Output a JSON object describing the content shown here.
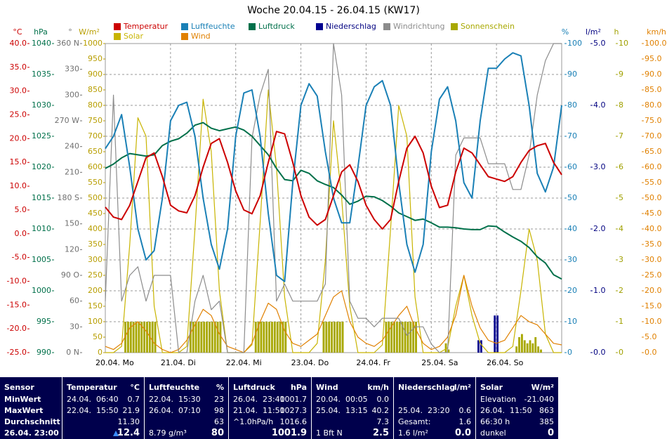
{
  "chart_data": {
    "type": "line",
    "title": "Woche 20.04.15 - 26.04.15 (KW17)",
    "xlim": [
      0,
      168
    ],
    "xticks": [
      {
        "value": 0,
        "label": "20.04.  Mo"
      },
      {
        "value": 24,
        "label": "21.04.  Di"
      },
      {
        "value": 48,
        "label": "22.04.  Mi"
      },
      {
        "value": 72,
        "label": "23.04.  Do"
      },
      {
        "value": 96,
        "label": "24.04.  Fr"
      },
      {
        "value": 120,
        "label": "25.04.  Sa"
      },
      {
        "value": 144,
        "label": "26.04.  So"
      }
    ],
    "x": [
      0,
      3,
      6,
      9,
      12,
      15,
      18,
      21,
      24,
      27,
      30,
      33,
      36,
      39,
      42,
      45,
      48,
      51,
      54,
      57,
      60,
      63,
      66,
      69,
      72,
      75,
      78,
      81,
      84,
      87,
      90,
      93,
      96,
      99,
      102,
      105,
      108,
      111,
      114,
      117,
      120,
      123,
      126,
      129,
      132,
      135,
      138,
      141,
      144,
      147,
      150,
      153,
      156,
      159,
      162,
      165,
      168
    ],
    "axes": [
      {
        "label": "°C",
        "side": "left",
        "color": "#cc0000",
        "ylim": [
          -25,
          40
        ],
        "yticks": [
          {
            "value": -25,
            "label": "-25.0"
          },
          {
            "value": -20,
            "label": "-20.0"
          },
          {
            "value": -15,
            "label": "-15.0"
          },
          {
            "value": -10,
            "label": "-10.0"
          },
          {
            "value": -5,
            "label": "-5.0"
          },
          {
            "value": 0,
            "label": "0.0"
          },
          {
            "value": 5,
            "label": "5.0"
          },
          {
            "value": 10,
            "label": "10.0"
          },
          {
            "value": 15,
            "label": "15.0"
          },
          {
            "value": 20,
            "label": "20.0"
          },
          {
            "value": 25,
            "label": "25.0"
          },
          {
            "value": 30,
            "label": "30.0"
          },
          {
            "value": 35,
            "label": "35.0"
          },
          {
            "value": 40,
            "label": "40.0"
          }
        ]
      },
      {
        "label": "hPa",
        "side": "left",
        "color": "#00704a",
        "ylim": [
          990,
          1040
        ],
        "yticks": [
          990,
          995,
          1000,
          1005,
          1010,
          1015,
          1020,
          1025,
          1030,
          1035,
          1040
        ]
      },
      {
        "label": "°",
        "side": "left",
        "color": "#707070",
        "ylim": [
          0,
          360
        ],
        "yticks": [
          {
            "value": 0,
            "label": "0 N"
          },
          30,
          60,
          {
            "value": 90,
            "label": "90 O"
          },
          120,
          150,
          {
            "value": 180,
            "label": "180 S"
          },
          210,
          240,
          {
            "value": 270,
            "label": "270 W"
          },
          300,
          330,
          {
            "value": 360,
            "label": "360 N"
          }
        ]
      },
      {
        "label": "W/m²",
        "side": "left",
        "color": "#b89e00",
        "ylim": [
          0,
          1000
        ],
        "yticks": [
          0,
          50,
          100,
          150,
          200,
          250,
          300,
          350,
          400,
          450,
          500,
          550,
          600,
          650,
          700,
          750,
          800,
          850,
          900,
          950,
          1000
        ]
      },
      {
        "label": "%",
        "side": "right",
        "color": "#1a80b6",
        "grid": true,
        "ylim": [
          0,
          100
        ],
        "yticks": [
          0,
          10,
          20,
          30,
          40,
          50,
          60,
          70,
          80,
          90,
          100
        ]
      },
      {
        "label": "l/m²",
        "side": "right",
        "color": "#000080",
        "ylim": [
          0,
          5
        ],
        "yticks": [
          {
            "value": 0,
            "label": "0.0"
          },
          {
            "value": 1,
            "label": "1.0"
          },
          {
            "value": 2,
            "label": "2.0"
          },
          {
            "value": 3,
            "label": "3.0"
          },
          {
            "value": 4,
            "label": "4.0"
          },
          {
            "value": 5,
            "label": "5.0"
          }
        ]
      },
      {
        "label": "h",
        "side": "right",
        "color": "#a0a000",
        "ylim": [
          0,
          10
        ],
        "yticks": [
          0,
          1,
          2,
          3,
          4,
          5,
          6,
          7,
          8,
          9,
          10
        ]
      },
      {
        "label": "km/h",
        "side": "right",
        "color": "#e08000",
        "ylim": [
          0,
          100
        ],
        "yticks": [
          {
            "value": 0,
            "label": "0.0"
          },
          {
            "value": 5,
            "label": "5.0"
          },
          {
            "value": 10,
            "label": "10.0"
          },
          {
            "value": 15,
            "label": "15.0"
          },
          {
            "value": 20,
            "label": "20.0"
          },
          {
            "value": 25,
            "label": "25.0"
          },
          {
            "value": 30,
            "label": "30.0"
          },
          {
            "value": 35,
            "label": "35.0"
          },
          {
            "value": 40,
            "label": "40.0"
          },
          {
            "value": 45,
            "label": "45.0"
          },
          {
            "value": 50,
            "label": "50.0"
          },
          {
            "value": 55,
            "label": "55.0"
          },
          {
            "value": 60,
            "label": "60.0"
          },
          {
            "value": 65,
            "label": "65.0"
          },
          {
            "value": 70,
            "label": "70.0"
          },
          {
            "value": 75,
            "label": "75.0"
          },
          {
            "value": 80,
            "label": "80.0"
          },
          {
            "value": 85,
            "label": "85.0"
          },
          {
            "value": 90,
            "label": "90.0"
          },
          {
            "value": 95,
            "label": "95.0"
          },
          {
            "value": 100,
            "label": "100.0"
          }
        ]
      }
    ],
    "series": [
      {
        "name": "Temperatur",
        "type": "line",
        "axis": "°C",
        "color": "#cc0000",
        "values": [
          5.6,
          3.5,
          3.0,
          6,
          11,
          16,
          17,
          12,
          6,
          4.8,
          4.4,
          8,
          14,
          19,
          20,
          15,
          9,
          5,
          4.2,
          8,
          15,
          21.5,
          21,
          15,
          8,
          3.5,
          1.8,
          3,
          8,
          13,
          14.5,
          11,
          6,
          3,
          1.0,
          3,
          11,
          18,
          20.5,
          17,
          10,
          5.5,
          6,
          13,
          18,
          17,
          14.5,
          12,
          11.5,
          11,
          12,
          15,
          17.5,
          18.5,
          19,
          15,
          12.4
        ]
      },
      {
        "name": "Luftfeuchte",
        "type": "line",
        "axis": "%",
        "color": "#1a80b6",
        "values": [
          66,
          70,
          77,
          60,
          40,
          30,
          33,
          50,
          75,
          80,
          81,
          70,
          50,
          35,
          27,
          40,
          70,
          84,
          85,
          70,
          45,
          25,
          23,
          55,
          80,
          87,
          83,
          65,
          50,
          42,
          42,
          60,
          80,
          86,
          88,
          80,
          55,
          35,
          26,
          35,
          65,
          82,
          86,
          75,
          55,
          50,
          75,
          92,
          92,
          95,
          97,
          96,
          80,
          58,
          52,
          60,
          80
        ]
      },
      {
        "name": "Luftdruck",
        "type": "line",
        "axis": "hPa",
        "color": "#00704a",
        "values": [
          1019.8,
          1020.5,
          1021.5,
          1022.2,
          1022.0,
          1021.8,
          1022.0,
          1023.5,
          1024.2,
          1024.6,
          1025.5,
          1026.8,
          1027.2,
          1026.3,
          1025.9,
          1026.2,
          1026.5,
          1026.0,
          1025.0,
          1023.5,
          1022.0,
          1019.8,
          1018.0,
          1017.8,
          1019.5,
          1019.0,
          1017.8,
          1017.2,
          1016.7,
          1015.5,
          1014.0,
          1014.5,
          1015.3,
          1015.2,
          1014.6,
          1013.7,
          1012.6,
          1012.0,
          1011.4,
          1011.6,
          1011.0,
          1010.3,
          1010.3,
          1010.2,
          1010.0,
          1009.9,
          1009.9,
          1010.5,
          1010.4,
          1009.5,
          1008.7,
          1008.0,
          1007.0,
          1005.5,
          1004.5,
          1002.6,
          1001.9
        ]
      },
      {
        "name": "Niederschlag",
        "type": "bar",
        "axis": "l/m²",
        "color": "#000090",
        "x": [
          137,
          138,
          143,
          144
        ],
        "values": [
          0.2,
          0.2,
          0.6,
          0.6
        ]
      },
      {
        "name": "Windrichtung",
        "type": "line",
        "axis": "°",
        "color": "#8c8c8c",
        "values": [
          60,
          300,
          60,
          90,
          100,
          60,
          90,
          90,
          90,
          0,
          0,
          60,
          90,
          50,
          60,
          0,
          0,
          0,
          250,
          300,
          330,
          60,
          80,
          60,
          60,
          60,
          60,
          80,
          360,
          300,
          60,
          40,
          40,
          30,
          40,
          40,
          40,
          20,
          30,
          30,
          10,
          0,
          0,
          230,
          250,
          250,
          250,
          220,
          220,
          220,
          190,
          190,
          230,
          300,
          340,
          360,
          360
        ]
      },
      {
        "name": "Sonnenschein",
        "type": "bar",
        "axis": "h",
        "color": "#a8a800",
        "x": [
          7,
          8,
          9,
          10,
          11,
          12,
          13,
          14,
          15,
          16,
          17,
          18,
          31,
          32,
          33,
          34,
          35,
          36,
          37,
          38,
          39,
          40,
          41,
          42,
          55,
          56,
          57,
          58,
          59,
          60,
          61,
          62,
          63,
          64,
          65,
          66,
          80,
          81,
          82,
          83,
          84,
          85,
          86,
          87,
          103,
          104,
          105,
          106,
          107,
          108,
          109,
          110,
          111,
          112,
          113,
          114,
          125,
          126,
          151,
          152,
          153,
          154,
          155,
          156,
          157,
          158,
          159,
          160
        ],
        "values": [
          1,
          1,
          1,
          1,
          1,
          1,
          1,
          1,
          1,
          1,
          1,
          1,
          1,
          1,
          1,
          1,
          1,
          1,
          1,
          1,
          1,
          1,
          1,
          1,
          1,
          1,
          1,
          1,
          1,
          1,
          1,
          1,
          1,
          1,
          1,
          1,
          1,
          1,
          1,
          1,
          1,
          1,
          1,
          1,
          1,
          1,
          1,
          1,
          1,
          1,
          1,
          1,
          1,
          1,
          1,
          1,
          0.3,
          0.1,
          0.2,
          0.5,
          0.6,
          0.4,
          0.3,
          0.4,
          0.3,
          0.5,
          0.2,
          0.1
        ]
      },
      {
        "name": "Solar",
        "type": "line",
        "axis": "W/m²",
        "color": "#c8b400",
        "values": [
          0,
          0,
          20,
          350,
          760,
          700,
          150,
          0,
          0,
          0,
          20,
          400,
          820,
          650,
          200,
          0,
          0,
          0,
          25,
          420,
          850,
          600,
          180,
          0,
          0,
          0,
          30,
          300,
          750,
          500,
          150,
          0,
          0,
          0,
          25,
          400,
          800,
          700,
          180,
          0,
          0,
          0,
          15,
          150,
          250,
          120,
          30,
          0,
          0,
          0,
          20,
          200,
          400,
          300,
          60,
          0,
          0
        ]
      },
      {
        "name": "Wind",
        "type": "line",
        "axis": "km/h",
        "color": "#e08000",
        "values": [
          2,
          1,
          3,
          8,
          10,
          7,
          3,
          1,
          0,
          1,
          4,
          9,
          14,
          12,
          6,
          2,
          1,
          0,
          3,
          10,
          16,
          14,
          7,
          3,
          2,
          4,
          6,
          12,
          18,
          20,
          10,
          5,
          3,
          2,
          4,
          8,
          12,
          15,
          8,
          3,
          1,
          2,
          5,
          12,
          25,
          15,
          8,
          4,
          3,
          4,
          8,
          12,
          10,
          9,
          6,
          3,
          2.5
        ]
      }
    ]
  },
  "table": {
    "columns": [
      {
        "header": "Sensor",
        "rows": [
          {
            "label": "MinWert"
          },
          {
            "label": "MaxWert"
          },
          {
            "label": "Durchschnitt"
          },
          {
            "label": "26.04. 23:00"
          }
        ]
      },
      {
        "header": "Temperatur",
        "unit": "°C",
        "rows": [
          {
            "label": "24.04.  06:40",
            "value": "0.7"
          },
          {
            "label": "22.04.  15:50",
            "value": "21.9"
          },
          {
            "value": "11.30"
          },
          {
            "value": "12.4"
          }
        ]
      },
      {
        "header": "Luftfeuchte",
        "unit": "%",
        "rows": [
          {
            "label": "22.04.  15:30",
            "value": "23"
          },
          {
            "label": "26.04.  07:10",
            "value": "98"
          },
          {
            "value": "63"
          },
          {
            "label": "8.79 g/m³",
            "value": "80"
          }
        ]
      },
      {
        "header": "Luftdruck",
        "unit": "hPa",
        "rows": [
          {
            "label": "26.04.  23:40",
            "value": "1001.7"
          },
          {
            "label": "21.04.  11:50",
            "value": "1027.3"
          },
          {
            "label": "^1.0hPa/h",
            "value": "1016.6"
          },
          {
            "value": "1001.9"
          }
        ]
      },
      {
        "header": "Wind",
        "unit": "km/h",
        "rows": [
          {
            "label": "20.04.  00:05",
            "value": "0.0"
          },
          {
            "label": "25.04.  13:15",
            "value": "40.2"
          },
          {
            "value": "7.3"
          },
          {
            "label": "1 Bft N",
            "value": "2.5"
          }
        ]
      },
      {
        "header": "Niederschlag",
        "unit": "l/m²",
        "rows": [
          {},
          {
            "label": "25.04.  23:20",
            "value": "0.6"
          },
          {
            "label": "Gesamt:",
            "value": "1.6"
          },
          {
            "label": "1.6 l/m²",
            "value": "0.0"
          }
        ]
      },
      {
        "header": "Solar",
        "unit": "W/m²",
        "rows": [
          {
            "label": "Elevation",
            "value": "-21.040"
          },
          {
            "label": "26.04.  11:50",
            "value": "863"
          },
          {
            "label": "66:30 h",
            "value": "385"
          },
          {
            "label": "dunkel",
            "value": "0"
          }
        ]
      }
    ]
  }
}
